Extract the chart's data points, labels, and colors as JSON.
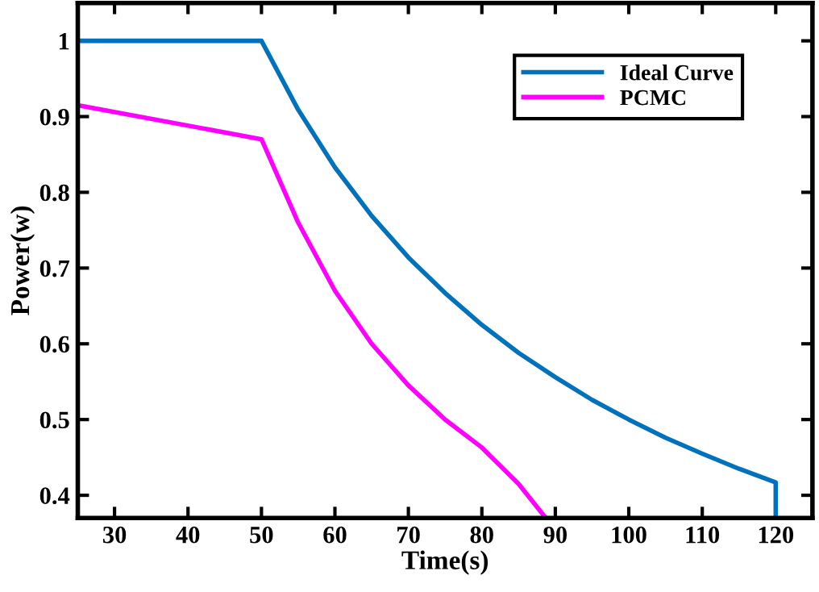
{
  "chart_data": {
    "type": "line",
    "xlabel": "Time(s)",
    "ylabel": "Power(w)",
    "xlim": [
      25,
      125
    ],
    "ylim": [
      0.37,
      1.05
    ],
    "xticks": [
      30,
      40,
      50,
      60,
      70,
      80,
      90,
      100,
      110,
      120
    ],
    "yticks": [
      0.4,
      0.5,
      0.6,
      0.7,
      0.8,
      0.9,
      1
    ],
    "grid": false,
    "legend": "top right",
    "line_style": "solid",
    "series": [
      {
        "name": "Ideal Curve",
        "color": "#0072bd",
        "x": [
          25,
          50,
          55,
          60,
          65,
          70,
          75,
          80,
          85,
          90,
          95,
          100,
          105,
          110,
          115,
          120,
          120
        ],
        "values": [
          1,
          1,
          0.909,
          0.833,
          0.769,
          0.714,
          0.667,
          0.625,
          0.588,
          0.556,
          0.526,
          0.5,
          0.476,
          0.455,
          0.435,
          0.417,
          0.37
        ]
      },
      {
        "name": "PCMC",
        "color": "#ff00ff",
        "x": [
          25,
          50,
          55,
          60,
          65,
          70,
          75,
          80,
          85,
          88.7
        ],
        "values": [
          0.915,
          0.87,
          0.76,
          0.67,
          0.6,
          0.545,
          0.5,
          0.463,
          0.415,
          0.37
        ]
      }
    ]
  }
}
